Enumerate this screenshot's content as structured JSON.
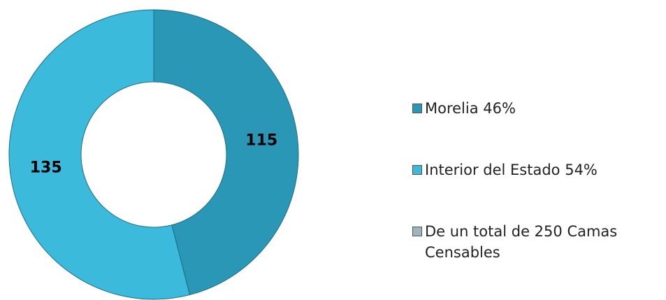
{
  "chart_data": {
    "type": "pie",
    "categories": [
      "Morelia  46%",
      "Interior del Estado  54%"
    ],
    "values": [
      115,
      135
    ],
    "colors": [
      "#2b97b6",
      "#3bbadb"
    ],
    "note": "De un total de 250 Camas Censables",
    "note_color": "#9fb4be",
    "donut": true
  }
}
